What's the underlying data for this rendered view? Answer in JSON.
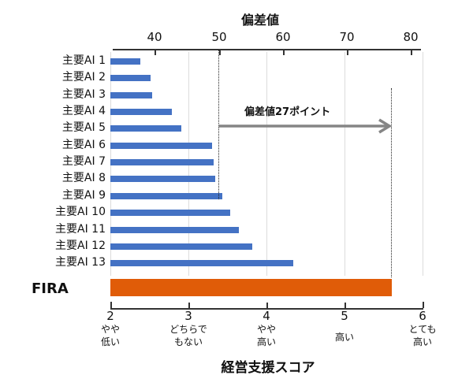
{
  "chart_data": {
    "type": "bar",
    "orientation": "horizontal",
    "title": "",
    "xlabel": "経営支援スコア",
    "ylabel": "",
    "xlim": [
      2,
      6
    ],
    "grid": true,
    "categories": [
      "主要AI 1",
      "主要AI 2",
      "主要AI 3",
      "主要AI 4",
      "主要AI 5",
      "主要AI 6",
      "主要AI 7",
      "主要AI 8",
      "主要AI 9",
      "主要AI 10",
      "主要AI 11",
      "主要AI 12",
      "主要AI 13",
      "FIRA"
    ],
    "series": [
      {
        "name": "主要AI",
        "color": "#4472C4",
        "values": [
          2.38,
          2.52,
          2.54,
          2.79,
          2.91,
          3.3,
          3.32,
          3.34,
          3.43,
          3.54,
          3.65,
          3.82,
          4.34,
          null
        ]
      },
      {
        "name": "FIRA",
        "color": "#E05C08",
        "values": [
          null,
          null,
          null,
          null,
          null,
          null,
          null,
          null,
          null,
          null,
          null,
          null,
          null,
          5.61
        ]
      }
    ],
    "bottom_axis": {
      "label": "経営支援スコア",
      "ticks": [
        {
          "value": 2,
          "label": "2",
          "desc": [
            "やや",
            "低い"
          ]
        },
        {
          "value": 3,
          "label": "3",
          "desc": [
            "どちらで",
            "もない"
          ]
        },
        {
          "value": 4,
          "label": "4",
          "desc": [
            "やや",
            "高い"
          ]
        },
        {
          "value": 5,
          "label": "5",
          "desc": [
            "高い"
          ]
        },
        {
          "value": 6,
          "label": "6",
          "desc": [
            "とても",
            "高い"
          ]
        }
      ]
    },
    "top_axis": {
      "label": "偏差値",
      "ticks": [
        "40",
        "50",
        "60",
        "70",
        "80"
      ]
    },
    "annotations": [
      {
        "type": "arrow",
        "text": "偏差値27ポイント",
        "from_top_value": 50,
        "to_top_value": 77
      }
    ]
  },
  "labels": {
    "top_title": "偏差値",
    "top_ticks": [
      "40",
      "50",
      "60",
      "70",
      "80"
    ],
    "rows": [
      "主要AI 1",
      "主要AI 2",
      "主要AI 3",
      "主要AI 4",
      "主要AI 5",
      "主要AI 6",
      "主要AI 7",
      "主要AI 8",
      "主要AI 9",
      "主要AI 10",
      "主要AI 11",
      "主要AI 12",
      "主要AI 13"
    ],
    "fira": "FIRA",
    "arrow_text": "偏差値27ポイント",
    "bottom_ticks": [
      "2",
      "3",
      "4",
      "5",
      "6"
    ],
    "bottom_desc": [
      [
        "やや",
        "低い"
      ],
      [
        "どちらで",
        "もない"
      ],
      [
        "やや",
        "高い"
      ],
      [
        "高い"
      ],
      [
        "とても",
        "高い"
      ]
    ],
    "bottom_title": "経営支援スコア"
  },
  "colors": {
    "bar_blue": "#4472C4",
    "bar_orange": "#E05C08",
    "arrow_gray": "#858585"
  }
}
